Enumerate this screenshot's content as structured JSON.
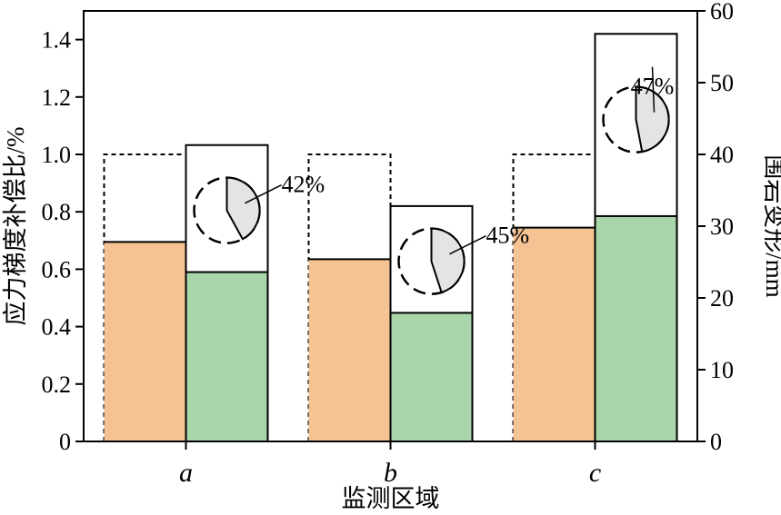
{
  "chart_data": {
    "type": "bar",
    "categories": [
      "a",
      "b",
      "c"
    ],
    "xlabel": "监测区域",
    "ylabel": "应力梯度补偿比/%",
    "y2label": "围岩变形/mm",
    "ylim": [
      0,
      1.5
    ],
    "y_ticks": [
      "0",
      "0.2",
      "0.4",
      "0.6",
      "0.8",
      "1.0",
      "1.2",
      "1.4"
    ],
    "y2lim": [
      0,
      60
    ],
    "y2_ticks": [
      "0",
      "10",
      "20",
      "30",
      "40",
      "50",
      "60"
    ],
    "grid": false,
    "series": [
      {
        "axis": "left",
        "values": [
          0.695,
          0.635,
          0.745
        ],
        "reference": 1.0
      },
      {
        "axis": "left",
        "values": [
          0.59,
          0.448,
          0.785
        ]
      },
      {
        "axis": "right",
        "values": [
          41.3,
          32.8,
          56.8
        ]
      }
    ],
    "pie_fractions": [
      0.42,
      0.45,
      0.47
    ],
    "annotations": [
      "42%",
      "45%",
      "47%"
    ],
    "colors": {
      "series1": "#f5c293",
      "series2": "#a8d5aa",
      "pie_fill": "#e4e4e4",
      "outline": "#000000"
    }
  }
}
